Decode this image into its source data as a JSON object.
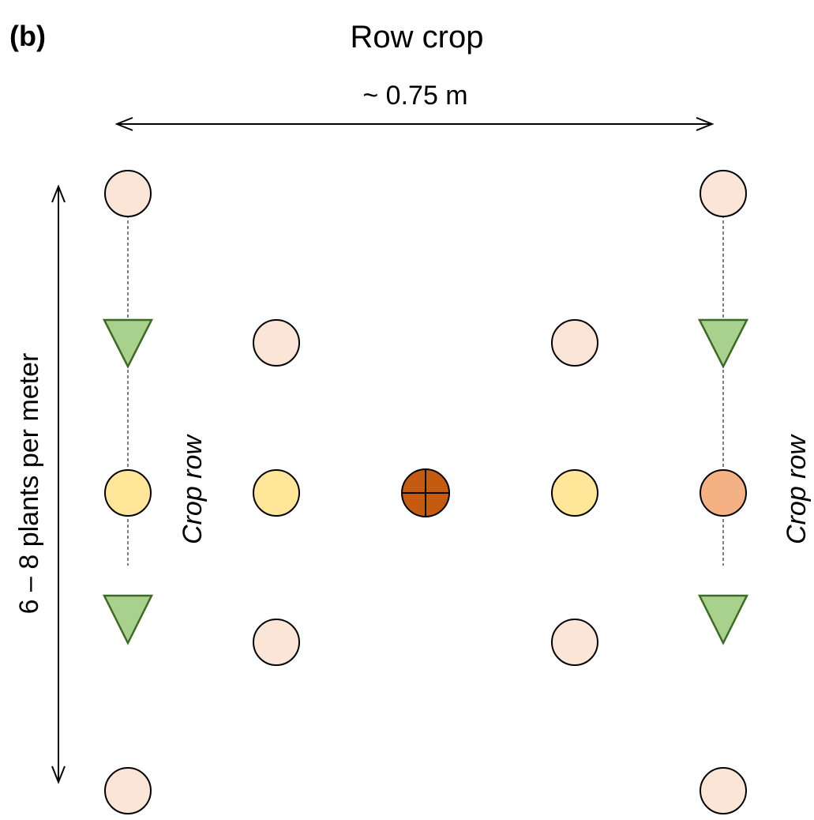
{
  "panel_label": "(b)",
  "title": "Row crop",
  "row_spacing_label": "~ 0.75 m",
  "plant_density_label": "6 – 8 plants per meter",
  "crop_row_label_left": "Crop row",
  "crop_row_label_right": "Crop row",
  "colors": {
    "pale_circle": "#fbe5d6",
    "yellow_circle": "#ffe699",
    "orange_circle": "#f4b183",
    "focal_circle": "#c55a11",
    "triangle": "#a9d18e",
    "triangle_stroke": "#3d6b22"
  }
}
